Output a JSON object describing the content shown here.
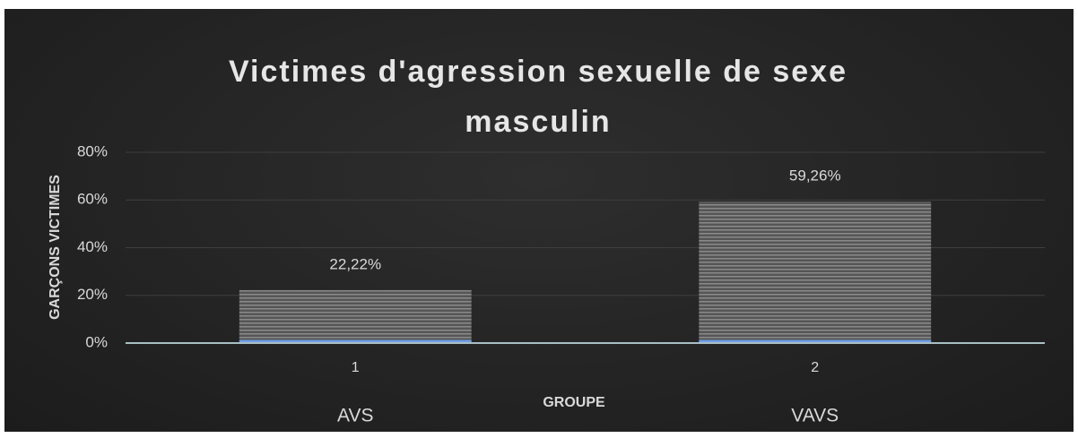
{
  "chart_data": {
    "type": "bar",
    "title": "Victimes d'agression sexuelle de sexe masculin",
    "categories": [
      "1",
      "2"
    ],
    "groups": [
      "AVS",
      "VAVS"
    ],
    "values": [
      22.22,
      59.26
    ],
    "value_labels": [
      "22,22%",
      "59,26%"
    ],
    "color": "#7f7f7f",
    "x_label": "GROUPE",
    "y_label": "GARÇONS VICTIMES",
    "ylim": [
      0,
      80
    ],
    "yticks": [
      {
        "value": 0,
        "label": "0%"
      },
      {
        "value": 20,
        "label": "20%"
      },
      {
        "value": 40,
        "label": "40%"
      },
      {
        "value": 60,
        "label": "60%"
      },
      {
        "value": 80,
        "label": "80%"
      }
    ],
    "grid": true
  }
}
